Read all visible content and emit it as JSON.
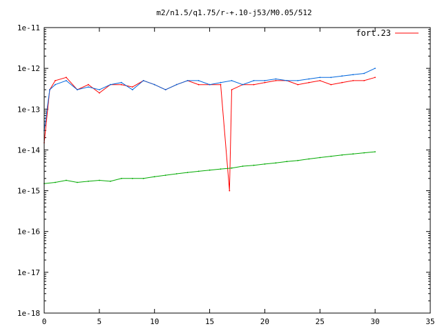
{
  "chart_data": {
    "type": "line",
    "title": "m2/n1.5/q1.75/r-+.10-j53/M0.05/512",
    "xlabel": "",
    "ylabel": "",
    "xlim": [
      0,
      35
    ],
    "ylim": [
      1e-18,
      1e-11
    ],
    "yscale": "log",
    "grid": false,
    "legend_position": "top-right",
    "x_ticks": [
      0,
      5,
      10,
      15,
      20,
      25,
      30,
      35
    ],
    "x_tick_labels": [
      "0",
      "5",
      "10",
      "15",
      "20",
      "25",
      "30",
      "35"
    ],
    "y_ticks": [
      1e-18,
      1e-17,
      1e-16,
      1e-15,
      1e-14,
      1e-13,
      1e-12,
      1e-11
    ],
    "y_tick_labels": [
      "1e-18",
      "1e-17",
      "1e-16",
      "1e-15",
      "1e-14",
      "1e-13",
      "1e-12",
      "1e-11"
    ],
    "series": [
      {
        "name": "fort.23",
        "color": "#ff0000",
        "x": [
          0,
          0.5,
          1,
          2,
          3,
          4,
          5,
          6,
          7,
          8,
          9,
          10,
          11,
          12,
          13,
          14,
          15,
          16,
          16.8,
          17,
          18,
          19,
          20,
          21,
          22,
          23,
          24,
          25,
          26,
          27,
          28,
          29,
          30
        ],
        "y": [
          1.5e-14,
          3e-13,
          5e-13,
          6e-13,
          3e-13,
          4e-13,
          2.5e-13,
          4e-13,
          4e-13,
          3.5e-13,
          5e-13,
          4e-13,
          3e-13,
          4e-13,
          5e-13,
          4e-13,
          4e-13,
          4e-13,
          1e-15,
          3e-13,
          4e-13,
          4e-13,
          4.5e-13,
          5e-13,
          5e-13,
          4e-13,
          4.5e-13,
          5e-13,
          4e-13,
          4.5e-13,
          5e-13,
          5e-13,
          6e-13
        ]
      },
      {
        "name": "",
        "color": "#0066dd",
        "x": [
          0,
          0.5,
          1,
          2,
          3,
          4,
          5,
          6,
          7,
          8,
          9,
          10,
          11,
          12,
          13,
          14,
          15,
          16,
          17,
          18,
          19,
          20,
          21,
          22,
          23,
          24,
          25,
          26,
          27,
          28,
          29,
          30
        ],
        "y": [
          3e-14,
          3e-13,
          4e-13,
          5e-13,
          3e-13,
          3.5e-13,
          3e-13,
          4e-13,
          4.5e-13,
          3e-13,
          5e-13,
          4e-13,
          3e-13,
          4e-13,
          5e-13,
          5e-13,
          4e-13,
          4.5e-13,
          5e-13,
          4e-13,
          5e-13,
          5e-13,
          5.5e-13,
          5e-13,
          5e-13,
          5.5e-13,
          6e-13,
          6e-13,
          6.5e-13,
          7e-13,
          7.5e-13,
          1e-12
        ]
      },
      {
        "name": "",
        "color": "#00aa00",
        "x": [
          0,
          1,
          2,
          3,
          4,
          5,
          6,
          7,
          8,
          9,
          10,
          11,
          12,
          13,
          14,
          15,
          16,
          17,
          18,
          19,
          20,
          21,
          22,
          23,
          24,
          25,
          26,
          27,
          28,
          29,
          30
        ],
        "y": [
          1.5e-15,
          1.6e-15,
          1.8e-15,
          1.6e-15,
          1.7e-15,
          1.8e-15,
          1.7e-15,
          2e-15,
          2e-15,
          2e-15,
          2.2e-15,
          2.4e-15,
          2.6e-15,
          2.8e-15,
          3e-15,
          3.2e-15,
          3.4e-15,
          3.6e-15,
          4e-15,
          4.2e-15,
          4.5e-15,
          4.8e-15,
          5.2e-15,
          5.5e-15,
          6e-15,
          6.5e-15,
          7e-15,
          7.5e-15,
          8e-15,
          8.5e-15,
          9e-15
        ]
      }
    ]
  }
}
